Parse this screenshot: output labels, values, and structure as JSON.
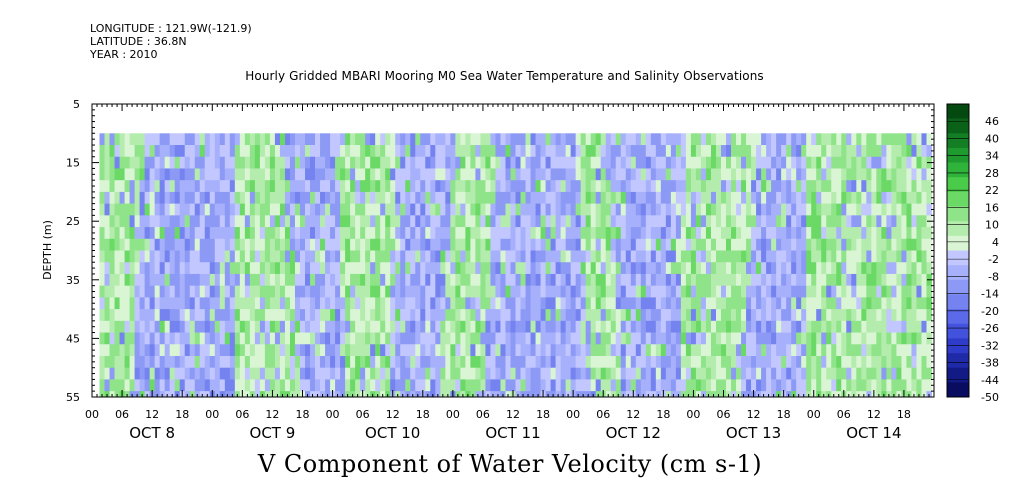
{
  "meta": {
    "longitude": "LONGITUDE : 121.9W(-121.9)",
    "latitude": "LATITUDE : 36.8N",
    "year": "YEAR : 2010"
  },
  "chart_data": {
    "type": "heatmap",
    "title": "Hourly Gridded MBARI Mooring M0 Sea Water Temperature and Salinity Observations",
    "xlabel": "V Component of Water Velocity (cm s-1)",
    "ylabel": "DEPTH (m)",
    "y_axis": {
      "range": [
        5,
        55
      ],
      "inverted": true,
      "ticks": [
        5,
        15,
        25,
        35,
        45,
        55
      ],
      "data_top": 10
    },
    "x_axis": {
      "hour_ticks": [
        "00",
        "06",
        "12",
        "18",
        "00",
        "06",
        "12",
        "18",
        "00",
        "06",
        "12",
        "18",
        "00",
        "06",
        "12",
        "18",
        "00",
        "06",
        "12",
        "18",
        "00",
        "06",
        "12",
        "18",
        "00",
        "06",
        "12",
        "18"
      ],
      "day_labels": [
        "OCT  8",
        "OCT  9",
        "OCT 10",
        "OCT 11",
        "OCT 12",
        "OCT 13",
        "OCT 14"
      ],
      "range_hours": [
        0,
        168
      ],
      "data_start_hour": 1.5,
      "data_end_hour": 167.5
    },
    "colorbar": {
      "labels": [
        "46",
        "40",
        "34",
        "28",
        "22",
        "16",
        "10",
        "4",
        "-2",
        "-8",
        "-14",
        "-20",
        "-26",
        "-32",
        "-38",
        "-44",
        "-50"
      ],
      "min": -50,
      "max": 52
    },
    "pattern_by_period": [
      {
        "start_hour": 0,
        "end_hour": 10,
        "sign": "positive"
      },
      {
        "start_hour": 10,
        "end_hour": 28,
        "sign": "negative"
      },
      {
        "start_hour": 28,
        "end_hour": 38,
        "sign": "positive"
      },
      {
        "start_hour": 38,
        "end_hour": 48,
        "sign": "negative"
      },
      {
        "start_hour": 48,
        "end_hour": 60,
        "sign": "positive"
      },
      {
        "start_hour": 60,
        "end_hour": 72,
        "sign": "negative"
      },
      {
        "start_hour": 72,
        "end_hour": 80,
        "sign": "positive"
      },
      {
        "start_hour": 80,
        "end_hour": 96,
        "sign": "negative"
      },
      {
        "start_hour": 96,
        "end_hour": 102,
        "sign": "positive"
      },
      {
        "start_hour": 102,
        "end_hour": 118,
        "sign": "negative"
      },
      {
        "start_hour": 118,
        "end_hour": 132,
        "sign": "positive"
      },
      {
        "start_hour": 132,
        "end_hour": 142,
        "sign": "negative"
      },
      {
        "start_hour": 142,
        "end_hour": 168,
        "sign": "positive"
      }
    ]
  },
  "colors": {
    "positive_scale": [
      "#d9f5d4",
      "#b4ecad",
      "#8fe388",
      "#6bd966",
      "#4acb4a",
      "#2fb33a",
      "#1f9a2f",
      "#137e24",
      "#0a6219",
      "#044a10"
    ],
    "negative_scale": [
      "#c2c8ff",
      "#a7b1fb",
      "#8d9af5",
      "#7483ef",
      "#5b6ae8",
      "#4352dd",
      "#2f3cc9",
      "#1f2aa9",
      "#121a86",
      "#080d60"
    ]
  }
}
